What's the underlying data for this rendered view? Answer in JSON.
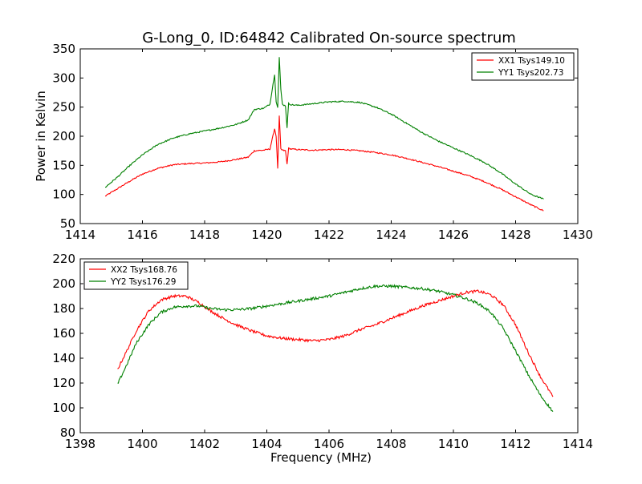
{
  "figure": {
    "title": "G-Long_0, ID:64842 Calibrated On-source spectrum"
  },
  "chart_data": [
    {
      "type": "line",
      "title": "G-Long_0, ID:64842 Calibrated On-source spectrum",
      "xlabel": "",
      "ylabel": "Power in Kelvin",
      "xlim": [
        1414,
        1430
      ],
      "ylim": [
        50,
        350
      ],
      "xticks": [
        1414,
        1416,
        1418,
        1420,
        1422,
        1424,
        1426,
        1428,
        1430
      ],
      "yticks": [
        50,
        100,
        150,
        200,
        250,
        300,
        350
      ],
      "legend": "top-right",
      "series": [
        {
          "name": "XX1 Tsys149.10",
          "color": "#ff0000",
          "x": [
            1414.8,
            1415.2,
            1415.6,
            1416.0,
            1416.5,
            1417.0,
            1417.5,
            1418.0,
            1418.5,
            1419.0,
            1419.4,
            1419.6,
            1419.9,
            1420.1,
            1420.25,
            1420.3,
            1420.35,
            1420.4,
            1420.45,
            1420.5,
            1420.6,
            1420.65,
            1420.7,
            1420.8,
            1421.0,
            1421.5,
            1422.0,
            1422.5,
            1423.0,
            1423.5,
            1424.0,
            1424.5,
            1425.0,
            1425.5,
            1426.0,
            1426.5,
            1427.0,
            1427.5,
            1428.0,
            1428.5,
            1428.9
          ],
          "y": [
            97,
            110,
            123,
            135,
            145,
            151,
            153,
            154,
            156,
            160,
            164,
            175,
            176,
            178,
            213,
            200,
            145,
            235,
            178,
            176,
            175,
            152,
            179,
            178,
            177,
            176,
            177,
            177,
            175,
            172,
            168,
            162,
            155,
            148,
            140,
            132,
            122,
            110,
            96,
            82,
            72
          ]
        },
        {
          "name": "YY1 Tsys202.73",
          "color": "#008000",
          "x": [
            1414.8,
            1415.2,
            1415.6,
            1416.0,
            1416.5,
            1417.0,
            1417.5,
            1418.0,
            1418.5,
            1419.0,
            1419.4,
            1419.6,
            1419.9,
            1420.1,
            1420.2,
            1420.25,
            1420.3,
            1420.35,
            1420.4,
            1420.45,
            1420.5,
            1420.6,
            1420.65,
            1420.7,
            1420.8,
            1421.0,
            1421.5,
            1422.0,
            1422.5,
            1423.0,
            1423.5,
            1424.0,
            1424.5,
            1425.0,
            1425.5,
            1426.0,
            1426.5,
            1427.0,
            1427.5,
            1428.0,
            1428.5,
            1428.9
          ],
          "y": [
            112,
            130,
            150,
            168,
            186,
            197,
            204,
            209,
            214,
            220,
            228,
            246,
            248,
            255,
            290,
            305,
            260,
            250,
            336,
            280,
            255,
            252,
            215,
            256,
            254,
            253,
            256,
            259,
            260,
            258,
            250,
            238,
            222,
            206,
            192,
            180,
            168,
            155,
            138,
            118,
            100,
            92
          ]
        }
      ]
    },
    {
      "type": "line",
      "title": "",
      "xlabel": "Frequency (MHz)",
      "ylabel": "",
      "xlim": [
        1398,
        1414
      ],
      "ylim": [
        80,
        220
      ],
      "xticks": [
        1398,
        1400,
        1402,
        1404,
        1406,
        1408,
        1410,
        1412,
        1414
      ],
      "yticks": [
        80,
        100,
        120,
        140,
        160,
        180,
        200,
        220
      ],
      "legend": "top-left",
      "series": [
        {
          "name": "XX2 Tsys168.76",
          "color": "#ff0000",
          "x": [
            1399.2,
            1399.5,
            1399.8,
            1400.2,
            1400.6,
            1401.0,
            1401.4,
            1401.8,
            1402.2,
            1402.6,
            1403.0,
            1403.5,
            1404.0,
            1404.5,
            1405.0,
            1405.5,
            1406.0,
            1406.5,
            1407.0,
            1407.5,
            1408.0,
            1408.5,
            1409.0,
            1409.5,
            1410.0,
            1410.4,
            1410.8,
            1411.2,
            1411.6,
            1412.0,
            1412.4,
            1412.8,
            1413.2
          ],
          "y": [
            131,
            146,
            162,
            178,
            187,
            190,
            190,
            185,
            178,
            172,
            167,
            162,
            158,
            156,
            155,
            154,
            155,
            158,
            163,
            167,
            172,
            177,
            182,
            186,
            190,
            193,
            194,
            191,
            183,
            167,
            145,
            125,
            109
          ]
        },
        {
          "name": "YY2 Tsys176.29",
          "color": "#008000",
          "x": [
            1399.2,
            1399.5,
            1399.8,
            1400.2,
            1400.6,
            1401.0,
            1401.4,
            1401.8,
            1402.2,
            1402.6,
            1403.0,
            1403.5,
            1404.0,
            1404.5,
            1405.0,
            1405.5,
            1406.0,
            1406.5,
            1407.0,
            1407.5,
            1408.0,
            1408.5,
            1409.0,
            1409.5,
            1410.0,
            1410.4,
            1410.8,
            1411.2,
            1411.6,
            1412.0,
            1412.4,
            1412.8,
            1413.2
          ],
          "y": [
            119,
            135,
            152,
            167,
            177,
            181,
            182,
            182,
            180,
            179,
            179,
            180,
            182,
            184,
            186,
            188,
            190,
            193,
            196,
            198,
            198,
            197,
            196,
            194,
            191,
            188,
            184,
            177,
            164,
            146,
            127,
            110,
            97
          ]
        }
      ]
    }
  ]
}
